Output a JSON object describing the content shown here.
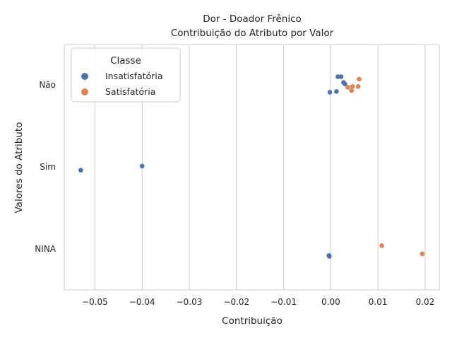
{
  "chart_data": {
    "type": "scatter",
    "title": "Dor - Doador Frênico",
    "subtitle": "Contribuição do Atributo por Valor",
    "xlabel": "Contribuição",
    "ylabel": "Valores do Atributo",
    "xlim": [
      -0.0565,
      0.023
    ],
    "x_ticks": [
      -0.05,
      -0.04,
      -0.03,
      -0.02,
      -0.01,
      0.0,
      0.01,
      0.02
    ],
    "x_tick_labels": [
      "−0.05",
      "−0.04",
      "−0.03",
      "−0.02",
      "−0.01",
      "0.00",
      "0.01",
      "0.02"
    ],
    "categories": [
      "Não",
      "Sim",
      "NINA"
    ],
    "grid": "vertical",
    "legend": {
      "title": "Classe",
      "placement": "top-left"
    },
    "series": [
      {
        "name": "Insatisfatória",
        "color": "#4c72b0",
        "points": [
          {
            "x": 0.0015,
            "category": "Não",
            "jitter": 0.1
          },
          {
            "x": 0.0022,
            "category": "Não",
            "jitter": 0.1
          },
          {
            "x": 0.0027,
            "category": "Não",
            "jitter": 0.03
          },
          {
            "x": 0.003,
            "category": "Não",
            "jitter": 0.01
          },
          {
            "x": 0.0012,
            "category": "Não",
            "jitter": -0.08
          },
          {
            "x": -0.0002,
            "category": "Não",
            "jitter": -0.09
          },
          {
            "x": -0.04,
            "category": "Sim",
            "jitter": 0.01
          },
          {
            "x": -0.053,
            "category": "Sim",
            "jitter": -0.04
          },
          {
            "x": -0.0004,
            "category": "NINA",
            "jitter": -0.08
          },
          {
            "x": -0.0003,
            "category": "NINA",
            "jitter": -0.09
          }
        ]
      },
      {
        "name": "Satisfatória",
        "color": "#dd8452",
        "points": [
          {
            "x": 0.006,
            "category": "Não",
            "jitter": 0.07
          },
          {
            "x": 0.0058,
            "category": "Não",
            "jitter": -0.02
          },
          {
            "x": 0.0046,
            "category": "Não",
            "jitter": -0.02
          },
          {
            "x": 0.0036,
            "category": "Não",
            "jitter": -0.03
          },
          {
            "x": 0.0044,
            "category": "Não",
            "jitter": -0.07
          },
          {
            "x": 0.0108,
            "category": "NINA",
            "jitter": 0.04
          },
          {
            "x": 0.0194,
            "category": "NINA",
            "jitter": -0.06
          }
        ]
      }
    ]
  }
}
